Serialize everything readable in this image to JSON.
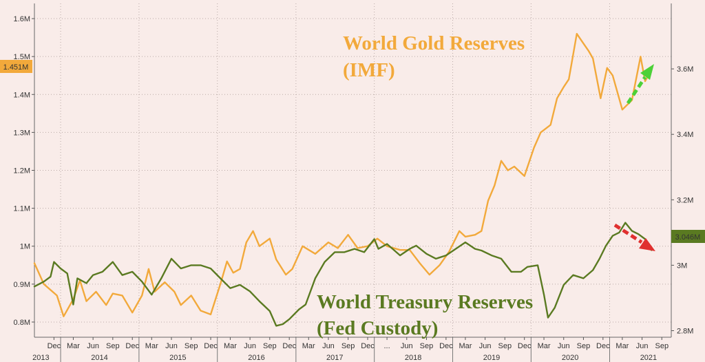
{
  "chart_data": {
    "type": "line",
    "title": "",
    "xlabel": "",
    "ylabel": "",
    "x_range": [
      "2013-09-01",
      "2021-10-15"
    ],
    "y_left": {
      "range": [
        760000,
        1640000
      ],
      "ticks": [
        800000,
        900000,
        1000000,
        1100000,
        1200000,
        1300000,
        1400000,
        1500000,
        1600000
      ],
      "tick_labels": [
        "0.8M",
        "0.9M",
        "1M",
        "1.1M",
        "1.2M",
        "1.3M",
        "1.4M",
        "1.5M",
        "1.6M"
      ]
    },
    "y_right": {
      "range": [
        2780000,
        3800000
      ],
      "ticks": [
        2800000,
        3000000,
        3200000,
        3400000,
        3600000
      ],
      "tick_labels": [
        "2.8M",
        "3M",
        "3.2M",
        "3.4M",
        "3.6M"
      ]
    },
    "grid": true,
    "x_ticks": [
      {
        "date": "2013-12-01",
        "label": "Dec"
      },
      {
        "date": "2014-03-01",
        "label": "Mar"
      },
      {
        "date": "2014-06-01",
        "label": "Jun"
      },
      {
        "date": "2014-09-01",
        "label": "Sep"
      },
      {
        "date": "2014-12-01",
        "label": "Dec"
      },
      {
        "date": "2015-03-01",
        "label": "Mar"
      },
      {
        "date": "2015-06-01",
        "label": "Jun"
      },
      {
        "date": "2015-09-01",
        "label": "Sep"
      },
      {
        "date": "2015-12-01",
        "label": "Dec"
      },
      {
        "date": "2016-03-01",
        "label": "Mar"
      },
      {
        "date": "2016-06-01",
        "label": "Jun"
      },
      {
        "date": "2016-09-01",
        "label": "Sep"
      },
      {
        "date": "2016-12-01",
        "label": "Dec"
      },
      {
        "date": "2017-03-01",
        "label": "Mar"
      },
      {
        "date": "2017-06-01",
        "label": "Jun"
      },
      {
        "date": "2017-09-01",
        "label": "Sep"
      },
      {
        "date": "2017-12-01",
        "label": "Dec"
      },
      {
        "date": "2018-03-01",
        "label": "..."
      },
      {
        "date": "2018-06-01",
        "label": "Jun"
      },
      {
        "date": "2018-09-01",
        "label": "Sep"
      },
      {
        "date": "2018-12-01",
        "label": "Dec"
      },
      {
        "date": "2019-03-01",
        "label": "Mar"
      },
      {
        "date": "2019-06-01",
        "label": "Jun"
      },
      {
        "date": "2019-09-01",
        "label": "Sep"
      },
      {
        "date": "2019-12-01",
        "label": "Dec"
      },
      {
        "date": "2020-03-01",
        "label": "Mar"
      },
      {
        "date": "2020-06-01",
        "label": "Jun"
      },
      {
        "date": "2020-09-01",
        "label": "Sep"
      },
      {
        "date": "2020-12-01",
        "label": "Dec"
      },
      {
        "date": "2021-03-01",
        "label": "Mar"
      },
      {
        "date": "2021-06-01",
        "label": "Jun"
      },
      {
        "date": "2021-09-01",
        "label": "Sep"
      }
    ],
    "year_labels": [
      {
        "date": "2013-10-01",
        "label": "2013"
      },
      {
        "date": "2014-07-01",
        "label": "2014"
      },
      {
        "date": "2015-07-01",
        "label": "2015"
      },
      {
        "date": "2016-07-01",
        "label": "2016"
      },
      {
        "date": "2017-07-01",
        "label": "2017"
      },
      {
        "date": "2018-07-01",
        "label": "2018"
      },
      {
        "date": "2019-07-01",
        "label": "2019"
      },
      {
        "date": "2020-07-01",
        "label": "2020"
      },
      {
        "date": "2021-07-01",
        "label": "2021"
      }
    ],
    "year_dividers": [
      "2014-01-01",
      "2015-01-01",
      "2016-01-01",
      "2017-01-01",
      "2018-01-01",
      "2019-01-01",
      "2020-01-01",
      "2021-01-01"
    ],
    "series": [
      {
        "name": "World Gold Reserves (IMF)",
        "axis": "left",
        "color": "#f2a93b",
        "last_value_label": "1.451M",
        "points": [
          [
            "2013-09-01",
            955000
          ],
          [
            "2013-10-15",
            900000
          ],
          [
            "2013-12-15",
            870000
          ],
          [
            "2014-01-15",
            815000
          ],
          [
            "2014-03-01",
            860000
          ],
          [
            "2014-04-01",
            910000
          ],
          [
            "2014-05-01",
            855000
          ],
          [
            "2014-06-15",
            880000
          ],
          [
            "2014-08-01",
            845000
          ],
          [
            "2014-09-01",
            875000
          ],
          [
            "2014-10-15",
            870000
          ],
          [
            "2014-12-01",
            825000
          ],
          [
            "2015-01-15",
            870000
          ],
          [
            "2015-02-15",
            940000
          ],
          [
            "2015-03-15",
            880000
          ],
          [
            "2015-05-01",
            905000
          ],
          [
            "2015-06-15",
            880000
          ],
          [
            "2015-07-15",
            845000
          ],
          [
            "2015-09-01",
            870000
          ],
          [
            "2015-10-15",
            830000
          ],
          [
            "2015-12-01",
            820000
          ],
          [
            "2016-01-15",
            900000
          ],
          [
            "2016-02-15",
            960000
          ],
          [
            "2016-03-15",
            930000
          ],
          [
            "2016-04-15",
            940000
          ],
          [
            "2016-05-15",
            1010000
          ],
          [
            "2016-06-15",
            1040000
          ],
          [
            "2016-07-15",
            1000000
          ],
          [
            "2016-09-01",
            1020000
          ],
          [
            "2016-10-01",
            965000
          ],
          [
            "2016-11-15",
            925000
          ],
          [
            "2016-12-15",
            940000
          ],
          [
            "2017-02-01",
            1000000
          ],
          [
            "2017-04-01",
            980000
          ],
          [
            "2017-06-01",
            1010000
          ],
          [
            "2017-07-15",
            995000
          ],
          [
            "2017-09-01",
            1030000
          ],
          [
            "2017-10-15",
            995000
          ],
          [
            "2017-12-01",
            1000000
          ],
          [
            "2018-01-15",
            1020000
          ],
          [
            "2018-03-01",
            1000000
          ],
          [
            "2018-05-01",
            990000
          ],
          [
            "2018-06-15",
            990000
          ],
          [
            "2018-08-01",
            955000
          ],
          [
            "2018-09-15",
            925000
          ],
          [
            "2018-11-01",
            950000
          ],
          [
            "2018-12-15",
            985000
          ],
          [
            "2019-02-01",
            1040000
          ],
          [
            "2019-03-01",
            1025000
          ],
          [
            "2019-04-15",
            1030000
          ],
          [
            "2019-05-15",
            1040000
          ],
          [
            "2019-06-15",
            1120000
          ],
          [
            "2019-07-15",
            1160000
          ],
          [
            "2019-08-15",
            1225000
          ],
          [
            "2019-09-15",
            1200000
          ],
          [
            "2019-10-15",
            1210000
          ],
          [
            "2019-12-01",
            1185000
          ],
          [
            "2020-01-15",
            1260000
          ],
          [
            "2020-02-15",
            1300000
          ],
          [
            "2020-04-01",
            1320000
          ],
          [
            "2020-05-01",
            1390000
          ],
          [
            "2020-06-01",
            1420000
          ],
          [
            "2020-06-25",
            1440000
          ],
          [
            "2020-08-01",
            1560000
          ],
          [
            "2020-08-25",
            1540000
          ],
          [
            "2020-09-25",
            1515000
          ],
          [
            "2020-10-15",
            1495000
          ],
          [
            "2020-11-20",
            1390000
          ],
          [
            "2020-12-20",
            1470000
          ],
          [
            "2021-01-15",
            1450000
          ],
          [
            "2021-03-01",
            1360000
          ],
          [
            "2021-04-15",
            1385000
          ],
          [
            "2021-05-25",
            1500000
          ],
          [
            "2021-06-15",
            1435000
          ],
          [
            "2021-07-01",
            1451000
          ]
        ]
      },
      {
        "name": "World Treasury Reserves (Fed Custody)",
        "axis": "right",
        "color": "#5a7a21",
        "last_value_label": "3.046M",
        "points": [
          [
            "2013-09-01",
            2935000
          ],
          [
            "2013-10-15",
            2950000
          ],
          [
            "2013-11-15",
            2965000
          ],
          [
            "2013-12-01",
            3010000
          ],
          [
            "2014-01-01",
            2990000
          ],
          [
            "2014-02-01",
            2975000
          ],
          [
            "2014-03-01",
            2880000
          ],
          [
            "2014-03-20",
            2960000
          ],
          [
            "2014-05-01",
            2945000
          ],
          [
            "2014-06-01",
            2970000
          ],
          [
            "2014-07-15",
            2980000
          ],
          [
            "2014-09-01",
            3010000
          ],
          [
            "2014-10-15",
            2970000
          ],
          [
            "2014-12-01",
            2980000
          ],
          [
            "2015-01-15",
            2950000
          ],
          [
            "2015-03-01",
            2910000
          ],
          [
            "2015-04-15",
            2960000
          ],
          [
            "2015-06-01",
            3020000
          ],
          [
            "2015-07-15",
            2990000
          ],
          [
            "2015-09-01",
            3000000
          ],
          [
            "2015-10-15",
            3000000
          ],
          [
            "2015-12-01",
            2990000
          ],
          [
            "2016-01-15",
            2960000
          ],
          [
            "2016-03-01",
            2930000
          ],
          [
            "2016-04-15",
            2940000
          ],
          [
            "2016-06-01",
            2920000
          ],
          [
            "2016-07-15",
            2890000
          ],
          [
            "2016-09-01",
            2860000
          ],
          [
            "2016-10-01",
            2815000
          ],
          [
            "2016-11-01",
            2820000
          ],
          [
            "2016-12-01",
            2835000
          ],
          [
            "2017-01-15",
            2865000
          ],
          [
            "2017-02-15",
            2880000
          ],
          [
            "2017-04-01",
            2960000
          ],
          [
            "2017-05-15",
            3010000
          ],
          [
            "2017-07-01",
            3040000
          ],
          [
            "2017-08-15",
            3040000
          ],
          [
            "2017-10-01",
            3050000
          ],
          [
            "2017-11-15",
            3040000
          ],
          [
            "2018-01-01",
            3080000
          ],
          [
            "2018-01-20",
            3050000
          ],
          [
            "2018-03-01",
            3065000
          ],
          [
            "2018-05-01",
            3030000
          ],
          [
            "2018-06-15",
            3050000
          ],
          [
            "2018-07-15",
            3060000
          ],
          [
            "2018-09-01",
            3035000
          ],
          [
            "2018-10-15",
            3020000
          ],
          [
            "2018-12-01",
            3030000
          ],
          [
            "2019-01-15",
            3050000
          ],
          [
            "2019-03-01",
            3070000
          ],
          [
            "2019-04-15",
            3050000
          ],
          [
            "2019-05-15",
            3045000
          ],
          [
            "2019-07-01",
            3030000
          ],
          [
            "2019-08-15",
            3020000
          ],
          [
            "2019-10-01",
            2980000
          ],
          [
            "2019-11-15",
            2980000
          ],
          [
            "2019-12-15",
            2995000
          ],
          [
            "2020-02-01",
            3000000
          ],
          [
            "2020-03-01",
            2910000
          ],
          [
            "2020-03-20",
            2840000
          ],
          [
            "2020-04-20",
            2870000
          ],
          [
            "2020-06-01",
            2940000
          ],
          [
            "2020-07-15",
            2970000
          ],
          [
            "2020-09-01",
            2960000
          ],
          [
            "2020-10-15",
            2985000
          ],
          [
            "2020-11-15",
            3020000
          ],
          [
            "2020-12-15",
            3060000
          ],
          [
            "2021-01-15",
            3090000
          ],
          [
            "2021-02-15",
            3100000
          ],
          [
            "2021-03-15",
            3130000
          ],
          [
            "2021-04-15",
            3105000
          ],
          [
            "2021-05-15",
            3095000
          ],
          [
            "2021-06-15",
            3080000
          ],
          [
            "2021-07-15",
            3046000
          ]
        ]
      }
    ],
    "annotations": [
      {
        "text": "World Gold Reserves",
        "color": "#f2a93b"
      },
      {
        "text": "(IMF)",
        "color": "#f2a93b"
      },
      {
        "text": "World Treasury Reserves",
        "color": "#5a7a21"
      },
      {
        "text": "(Fed Custody)",
        "color": "#5a7a21"
      }
    ],
    "arrows": [
      {
        "color": "#4cd137",
        "direction": "up"
      },
      {
        "color": "#e0302f",
        "direction": "down"
      }
    ]
  }
}
